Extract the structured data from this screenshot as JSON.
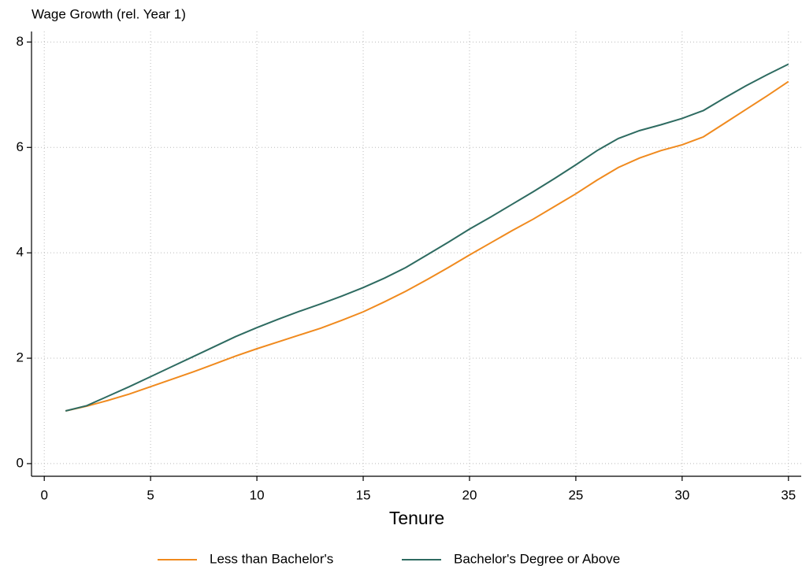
{
  "chart_data": {
    "type": "line",
    "y_label": "Wage Growth (rel. Year 1)",
    "x_label": "Tenure",
    "x": [
      1,
      2,
      3,
      4,
      5,
      6,
      7,
      8,
      9,
      10,
      11,
      12,
      13,
      14,
      15,
      16,
      17,
      18,
      19,
      20,
      21,
      22,
      23,
      24,
      25,
      26,
      27,
      28,
      29,
      30,
      31,
      32,
      33,
      34,
      35
    ],
    "series": [
      {
        "name": "Less than Bachelor's",
        "color": "#f08a1e",
        "values": [
          1.0,
          1.09,
          1.2,
          1.32,
          1.46,
          1.6,
          1.74,
          1.89,
          2.04,
          2.18,
          2.31,
          2.44,
          2.57,
          2.72,
          2.88,
          3.07,
          3.27,
          3.49,
          3.72,
          3.96,
          4.19,
          4.42,
          4.64,
          4.88,
          5.12,
          5.38,
          5.62,
          5.8,
          5.94,
          6.05,
          6.2,
          6.46,
          6.72,
          6.98,
          7.25
        ]
      },
      {
        "name": "Bachelor's Degree or Above",
        "color": "#2e6b61",
        "values": [
          1.0,
          1.1,
          1.28,
          1.46,
          1.65,
          1.84,
          2.03,
          2.22,
          2.41,
          2.58,
          2.74,
          2.89,
          3.03,
          3.18,
          3.34,
          3.52,
          3.72,
          3.96,
          4.2,
          4.45,
          4.68,
          4.92,
          5.16,
          5.41,
          5.67,
          5.94,
          6.17,
          6.32,
          6.43,
          6.55,
          6.7,
          6.94,
          7.17,
          7.38,
          7.58
        ]
      }
    ],
    "xlim": [
      -0.6,
      35.6
    ],
    "xticks": [
      0,
      5,
      10,
      15,
      20,
      25,
      30,
      35
    ],
    "ylim": [
      -0.24,
      8.2
    ],
    "yticks": [
      0,
      2,
      4,
      6,
      8
    ],
    "grid": true,
    "legend": "bottom"
  }
}
